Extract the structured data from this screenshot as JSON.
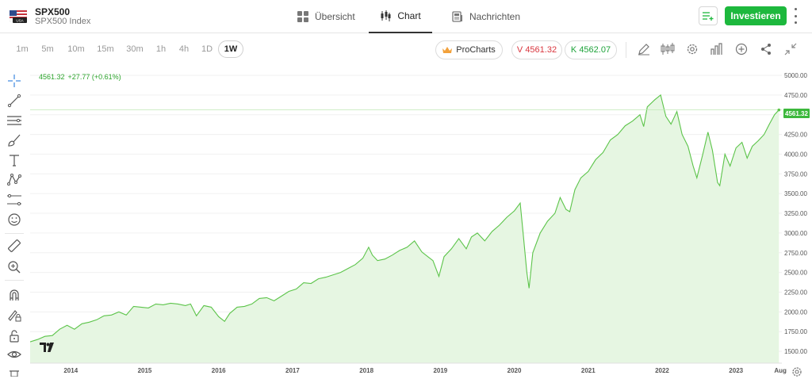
{
  "header": {
    "symbol": "SPX500",
    "symbol_subtitle": "SPX500 Index",
    "flag_label": "USA",
    "tabs": [
      {
        "label": "Übersicht",
        "icon": "grid-icon"
      },
      {
        "label": "Chart",
        "icon": "candles-icon",
        "active": true
      },
      {
        "label": "Nachrichten",
        "icon": "news-icon"
      }
    ],
    "invest_label": "Investieren"
  },
  "toolbar": {
    "timeframes": [
      "1m",
      "5m",
      "10m",
      "15m",
      "30m",
      "1h",
      "4h",
      "1D",
      "1W"
    ],
    "active_timeframe": "1W",
    "procharts_label": "ProCharts",
    "sell_label": "V 4561.32",
    "buy_label": "K 4562.07"
  },
  "readout": {
    "price": "4561.32",
    "change": "+27.77 (+0.61%)"
  },
  "last_price_tag": "4561.32",
  "chart_data": {
    "type": "area",
    "x_labels": [
      "2014",
      "2015",
      "2016",
      "2017",
      "2018",
      "2019",
      "2020",
      "2021",
      "2022",
      "2023",
      "Aug"
    ],
    "y_ticks": [
      1500,
      1750,
      2000,
      2250,
      2500,
      2750,
      3000,
      3250,
      3500,
      3750,
      4000,
      4250,
      4500,
      4750,
      5000
    ],
    "y_tick_labels": [
      "1500.00",
      "1750.00",
      "2000.00",
      "2250.00",
      "2500.00",
      "2750.00",
      "3000.00",
      "3250.00",
      "3500.00",
      "3750.00",
      "4000.00",
      "4250.00",
      "4500.00",
      "4750.00",
      "5000.00"
    ],
    "ylim": [
      1350,
      5050
    ],
    "xlim": [
      2013.45,
      2023.62
    ],
    "x_tick_positions": [
      2014,
      2015,
      2016,
      2017,
      2018,
      2019,
      2020,
      2021,
      2022,
      2023,
      2023.6
    ],
    "line_color": "#5cc44a",
    "fill_color": "#e6f6e2",
    "series": [
      {
        "x": [
          2013.45,
          2013.55,
          2013.65,
          2013.75,
          2013.85,
          2013.95,
          2014.05,
          2014.15,
          2014.25,
          2014.35,
          2014.45,
          2014.55,
          2014.65,
          2014.75,
          2014.85,
          2014.95,
          2015.05,
          2015.15,
          2015.25,
          2015.35,
          2015.45,
          2015.55,
          2015.62,
          2015.7,
          2015.8,
          2015.9,
          2016.0,
          2016.08,
          2016.15,
          2016.25,
          2016.35,
          2016.45,
          2016.55,
          2016.65,
          2016.75,
          2016.85,
          2016.95,
          2017.05,
          2017.15,
          2017.25,
          2017.35,
          2017.45,
          2017.55,
          2017.65,
          2017.75,
          2017.85,
          2017.95,
          2018.03,
          2018.08,
          2018.15,
          2018.25,
          2018.35,
          2018.45,
          2018.55,
          2018.65,
          2018.75,
          2018.83,
          2018.9,
          2018.98,
          2019.05,
          2019.15,
          2019.25,
          2019.35,
          2019.42,
          2019.5,
          2019.6,
          2019.7,
          2019.8,
          2019.9,
          2020.0,
          2020.08,
          2020.12,
          2020.17,
          2020.2,
          2020.25,
          2020.35,
          2020.45,
          2020.55,
          2020.62,
          2020.7,
          2020.75,
          2020.82,
          2020.9,
          2021.0,
          2021.1,
          2021.2,
          2021.3,
          2021.4,
          2021.5,
          2021.6,
          2021.7,
          2021.75,
          2021.8,
          2021.9,
          2021.98,
          2022.05,
          2022.12,
          2022.2,
          2022.27,
          2022.35,
          2022.42,
          2022.47,
          2022.55,
          2022.62,
          2022.68,
          2022.75,
          2022.78,
          2022.85,
          2022.92,
          2023.0,
          2023.08,
          2023.15,
          2023.22,
          2023.3,
          2023.38,
          2023.45,
          2023.52,
          2023.58
        ],
        "y": [
          1620,
          1650,
          1690,
          1700,
          1780,
          1830,
          1780,
          1850,
          1870,
          1900,
          1950,
          1960,
          2000,
          1960,
          2070,
          2060,
          2050,
          2100,
          2090,
          2110,
          2100,
          2080,
          2100,
          1950,
          2080,
          2060,
          1940,
          1880,
          1980,
          2060,
          2070,
          2100,
          2170,
          2180,
          2140,
          2200,
          2260,
          2290,
          2370,
          2360,
          2420,
          2440,
          2470,
          2500,
          2550,
          2600,
          2680,
          2820,
          2720,
          2650,
          2670,
          2720,
          2780,
          2820,
          2900,
          2760,
          2700,
          2650,
          2450,
          2700,
          2800,
          2930,
          2800,
          2950,
          3000,
          2900,
          3020,
          3100,
          3200,
          3280,
          3380,
          3000,
          2500,
          2300,
          2750,
          3000,
          3150,
          3250,
          3450,
          3300,
          3270,
          3550,
          3700,
          3780,
          3930,
          4020,
          4180,
          4250,
          4360,
          4420,
          4500,
          4350,
          4600,
          4690,
          4750,
          4480,
          4380,
          4540,
          4250,
          4100,
          3850,
          3700,
          4000,
          4280,
          4050,
          3640,
          3600,
          4000,
          3850,
          4080,
          4150,
          3950,
          4100,
          4170,
          4250,
          4380,
          4500,
          4561
        ]
      }
    ]
  }
}
